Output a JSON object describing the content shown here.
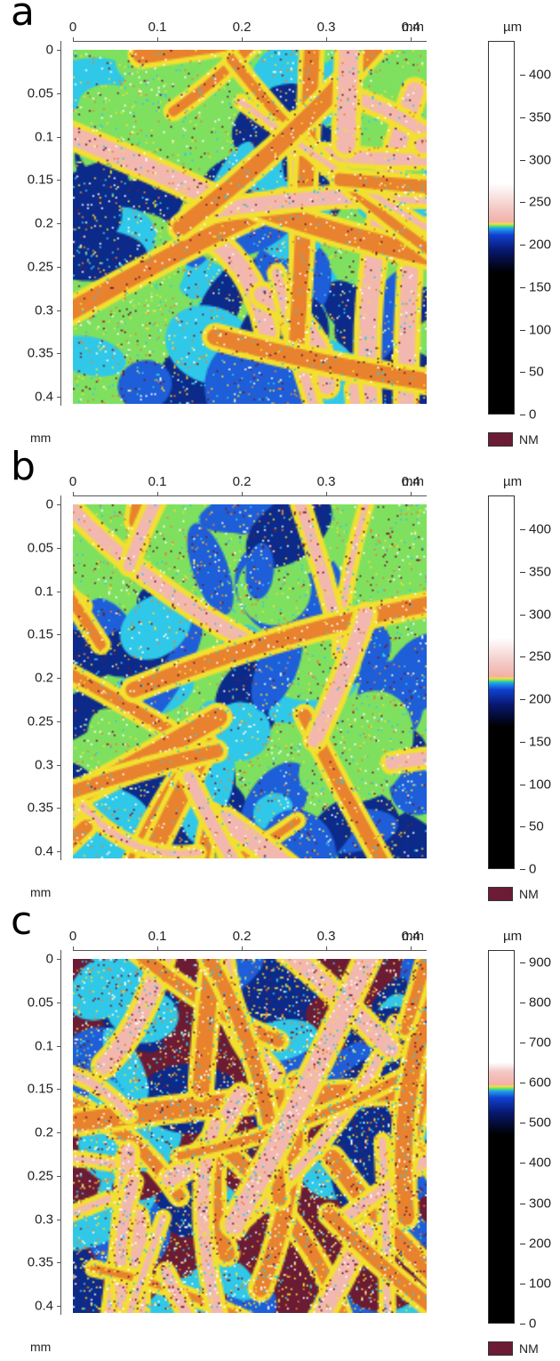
{
  "panels": [
    {
      "letter": "a",
      "x_ticks": [
        "0",
        "0.1",
        "0.2",
        "0.3",
        "0.4"
      ],
      "x_unit": "mm",
      "y_ticks": [
        "0",
        "0.05",
        "0.1",
        "0.15",
        "0.2",
        "0.25",
        "0.3",
        "0.35",
        "0.4"
      ],
      "y_unit": "mm",
      "colorbar_unit": "µm",
      "colorbar_ticks": [
        "400",
        "350",
        "300",
        "250",
        "200",
        "150",
        "100",
        "50",
        "0"
      ],
      "colorbar_max": 440,
      "nm_label": "NM"
    },
    {
      "letter": "b",
      "x_ticks": [
        "0",
        "0.1",
        "0.2",
        "0.3",
        "0.4"
      ],
      "x_unit": "mm",
      "y_ticks": [
        "0",
        "0.05",
        "0.1",
        "0.15",
        "0.2",
        "0.25",
        "0.3",
        "0.35",
        "0.4"
      ],
      "y_unit": "mm",
      "colorbar_unit": "µm",
      "colorbar_ticks": [
        "400",
        "350",
        "300",
        "250",
        "200",
        "150",
        "100",
        "50",
        "0"
      ],
      "colorbar_max": 440,
      "nm_label": "NM"
    },
    {
      "letter": "c",
      "x_ticks": [
        "0",
        "0.1",
        "0.2",
        "0.3",
        "0.4"
      ],
      "x_unit": "mm",
      "y_ticks": [
        "0",
        "0.05",
        "0.1",
        "0.15",
        "0.2",
        "0.25",
        "0.3",
        "0.35",
        "0.4"
      ],
      "y_unit": "mm",
      "colorbar_unit": "µm",
      "colorbar_ticks": [
        "900",
        "800",
        "700",
        "600",
        "500",
        "400",
        "300",
        "200",
        "100",
        "0"
      ],
      "colorbar_max": 930,
      "nm_label": "NM"
    }
  ],
  "colors": {
    "nm": "#6b1c34",
    "fiber_pink": "#f2b8b0",
    "orange": "#e8822e",
    "yellow": "#f2e030",
    "green": "#7fe060",
    "cyan": "#30c8e8",
    "blue": "#1e5ed8",
    "dark_blue": "#0c2a8a"
  }
}
